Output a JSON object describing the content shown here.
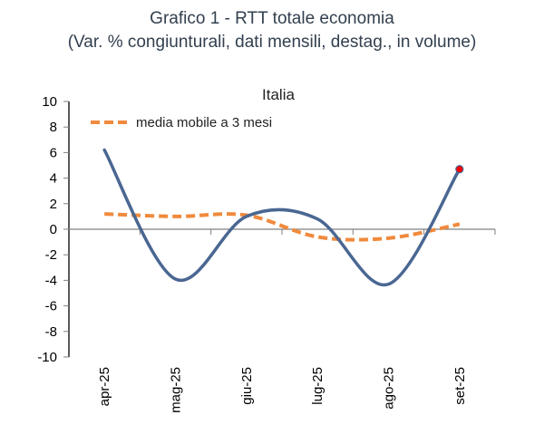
{
  "title": "Grafico 1 - RTT totale economia",
  "subtitle": "(Var. % congiunturali, dati mensili, destag., in volume)",
  "chart_data": {
    "type": "line",
    "panel_title": "Italia",
    "categories": [
      "apr-25",
      "mag-25",
      "giu-25",
      "lug-25",
      "ago-25",
      "set-25"
    ],
    "series": [
      {
        "name": "RTT totale economia",
        "values": [
          6.2,
          -3.9,
          1.0,
          0.8,
          -4.3,
          4.7
        ],
        "color": "#4a6792",
        "style": "solid-smooth",
        "last_point_marker_color": "#ff0000"
      },
      {
        "name": "media mobile a 3 mesi",
        "values": [
          1.2,
          1.0,
          1.1,
          -0.6,
          -0.7,
          0.4
        ],
        "color": "#f08a3c",
        "style": "dashed-smooth"
      }
    ],
    "legend": [
      {
        "label": "media mobile a 3 mesi",
        "color": "#f08a3c",
        "style": "dashed"
      }
    ],
    "legend_position": "top-left",
    "ylim": [
      -10,
      10
    ],
    "yticks": [
      "10",
      "8",
      "6",
      "4",
      "2",
      "0",
      "-2",
      "-4",
      "-6",
      "-8",
      "-10"
    ],
    "xlabel": "",
    "ylabel": "",
    "grid": false
  }
}
